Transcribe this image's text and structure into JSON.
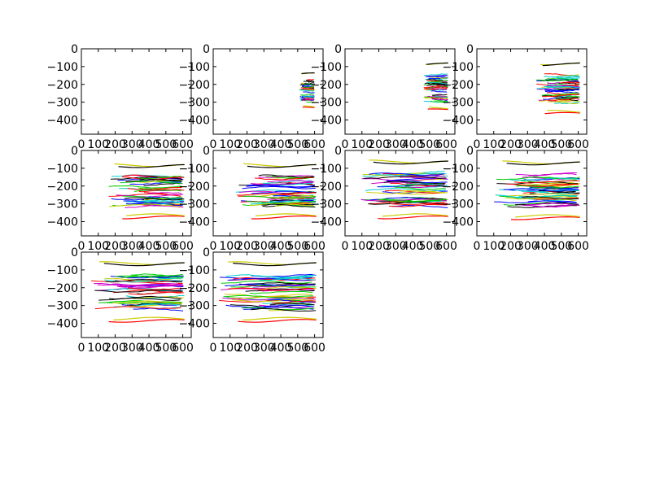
{
  "figure": {
    "panels": 10,
    "columns": 4,
    "xlim": [
      0,
      650
    ],
    "ylim": [
      -480,
      0
    ],
    "xticks": [
      0,
      100,
      200,
      300,
      400,
      500,
      600
    ],
    "yticks": [
      0,
      -100,
      -200,
      -300,
      -400
    ],
    "xtick_labels": [
      "0",
      "100",
      "200",
      "300",
      "400",
      "500",
      "600"
    ],
    "ytick_labels": [
      "0",
      "−100",
      "−200",
      "−300",
      "−400"
    ],
    "colors": [
      "#0000ff",
      "#00cc00",
      "#ff0000",
      "#00cccc",
      "#cc00cc",
      "#cccc00",
      "#000000"
    ]
  },
  "chart_data": [
    {
      "type": "line",
      "panel": 1,
      "title": "",
      "xlabel": "",
      "ylabel": "",
      "xlim": [
        0,
        650
      ],
      "ylim": [
        -480,
        0
      ],
      "grid": false,
      "x_range_of_traces": null,
      "y_range_of_traces": null,
      "series": []
    },
    {
      "type": "line",
      "panel": 2,
      "title": "",
      "xlabel": "",
      "ylabel": "",
      "xlim": [
        0,
        650
      ],
      "ylim": [
        -480,
        0
      ],
      "grid": false,
      "x_range_of_traces": [
        510,
        600
      ],
      "y_range_of_traces": [
        -330,
        -145
      ],
      "series": []
    },
    {
      "type": "line",
      "panel": 3,
      "title": "",
      "xlabel": "",
      "ylabel": "",
      "xlim": [
        0,
        650
      ],
      "ylim": [
        -480,
        0
      ],
      "grid": false,
      "x_range_of_traces": [
        460,
        610
      ],
      "y_range_of_traces": [
        -340,
        -90
      ],
      "series": []
    },
    {
      "type": "line",
      "panel": 4,
      "title": "",
      "xlabel": "",
      "ylabel": "",
      "xlim": [
        0,
        650
      ],
      "ylim": [
        -480,
        0
      ],
      "grid": false,
      "x_range_of_traces": [
        350,
        610
      ],
      "y_range_of_traces": [
        -360,
        -90
      ],
      "series": []
    },
    {
      "type": "line",
      "panel": 5,
      "title": "",
      "xlabel": "",
      "ylabel": "",
      "xlim": [
        0,
        650
      ],
      "ylim": [
        -480,
        0
      ],
      "grid": false,
      "x_range_of_traces": [
        150,
        610
      ],
      "y_range_of_traces": [
        -370,
        -90
      ],
      "series": []
    },
    {
      "type": "line",
      "panel": 6,
      "title": "",
      "xlabel": "",
      "ylabel": "",
      "xlim": [
        0,
        650
      ],
      "ylim": [
        -480,
        0
      ],
      "grid": false,
      "x_range_of_traces": [
        130,
        610
      ],
      "y_range_of_traces": [
        -370,
        -90
      ],
      "series": []
    },
    {
      "type": "line",
      "panel": 7,
      "title": "",
      "xlabel": "",
      "ylabel": "",
      "xlim": [
        0,
        650
      ],
      "ylim": [
        -480,
        0
      ],
      "grid": false,
      "x_range_of_traces": [
        90,
        610
      ],
      "y_range_of_traces": [
        -370,
        -70
      ],
      "series": []
    },
    {
      "type": "line",
      "panel": 8,
      "title": "",
      "xlabel": "",
      "ylabel": "",
      "xlim": [
        0,
        650
      ],
      "ylim": [
        -480,
        0
      ],
      "grid": false,
      "x_range_of_traces": [
        100,
        610
      ],
      "y_range_of_traces": [
        -375,
        -75
      ],
      "series": []
    },
    {
      "type": "line",
      "panel": 9,
      "title": "",
      "xlabel": "",
      "ylabel": "",
      "xlim": [
        0,
        650
      ],
      "ylim": [
        -480,
        0
      ],
      "grid": false,
      "x_range_of_traces": [
        50,
        610
      ],
      "y_range_of_traces": [
        -380,
        -70
      ],
      "series": []
    },
    {
      "type": "line",
      "panel": 10,
      "title": "",
      "xlabel": "",
      "ylabel": "",
      "xlim": [
        0,
        650
      ],
      "ylim": [
        -480,
        0
      ],
      "grid": false,
      "x_range_of_traces": [
        30,
        610
      ],
      "y_range_of_traces": [
        -380,
        -70
      ],
      "series": []
    }
  ]
}
